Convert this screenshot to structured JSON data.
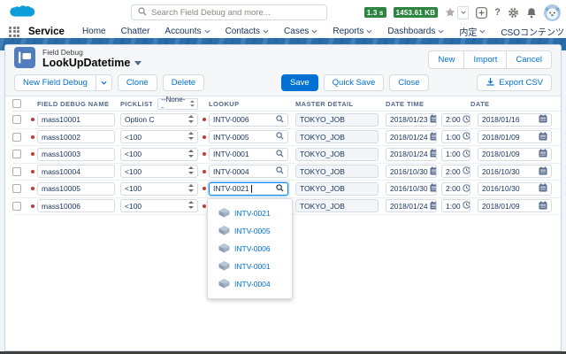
{
  "colors": {
    "accent": "#0070d2",
    "save_button_bg": "#0070d2",
    "badge_green": "#2e8540",
    "required_red": "#c23934",
    "brand_band_blue": "#2b6cab",
    "header_text": "#54698d"
  },
  "icons": {
    "salesforce-cloud": "cloud logo",
    "search": "magnifier",
    "favorites": "star with caret",
    "quick-create": "plus in rounded square",
    "help": "question mark",
    "setup": "gear",
    "notifications": "bell",
    "avatar": "user avatar circle",
    "app-launcher": "3x3 dot grid",
    "record-object": "blue square flag icon",
    "calendar": "calendar glyph",
    "clock": "clock glyph",
    "download": "download arrow",
    "lookup-record": "isometric box"
  },
  "utility_bar": {
    "search_placeholder": "Search Field Debug and more...",
    "perf_time_badge": "1.3 s",
    "perf_mem_badge": "1453.61 KB"
  },
  "nav": {
    "app_name": "Service",
    "items": [
      {
        "label": "Home",
        "caret": false
      },
      {
        "label": "Chatter",
        "caret": false
      },
      {
        "label": "Accounts",
        "caret": true
      },
      {
        "label": "Contacts",
        "caret": true
      },
      {
        "label": "Cases",
        "caret": true
      },
      {
        "label": "Reports",
        "caret": true
      },
      {
        "label": "Dashboards",
        "caret": true
      },
      {
        "label": "内定",
        "caret": true
      },
      {
        "label": "CSOコンテンツ",
        "caret": false
      }
    ]
  },
  "page_header": {
    "object_label": "Field Debug",
    "record_title": "LookUpDatetime",
    "top_buttons": [
      "New",
      "Import",
      "Cancel"
    ],
    "toolbar_left": [
      {
        "label": "New Field Debug",
        "split": true
      },
      {
        "label": "Clone"
      },
      {
        "label": "Delete"
      }
    ],
    "toolbar_center": [
      {
        "label": "Save",
        "primary": true
      },
      {
        "label": "Quick Save"
      },
      {
        "label": "Close"
      }
    ],
    "export_button": "Export CSV"
  },
  "table": {
    "columns": [
      "FIELD DEBUG NAME",
      "PICKLIST",
      "LOOKUP",
      "MASTER DETAIL",
      "DATE TIME",
      "DATE"
    ],
    "picklist_header_filter": "--None--",
    "rows": [
      {
        "name": "mass10001",
        "picklist": "Option C",
        "lookup": "INTV-0006",
        "lookup_editing": false,
        "master": "TOKYO_JOB",
        "datetime_date": "2018/01/23",
        "datetime_time": "2:00",
        "date": "2018/01/16"
      },
      {
        "name": "mass10002",
        "picklist": "<100",
        "lookup": "INTV-0005",
        "lookup_editing": false,
        "master": "TOKYO_JOB",
        "datetime_date": "2018/01/24",
        "datetime_time": "1:00",
        "date": "2018/01/09"
      },
      {
        "name": "mass10003",
        "picklist": "<100",
        "lookup": "INTV-0001",
        "lookup_editing": false,
        "master": "TOKYO_JOB",
        "datetime_date": "2018/01/24",
        "datetime_time": "1:00",
        "date": "2018/01/09"
      },
      {
        "name": "mass10004",
        "picklist": "<100",
        "lookup": "INTV-0004",
        "lookup_editing": false,
        "master": "TOKYO_JOB",
        "datetime_date": "2016/10/30",
        "datetime_time": "2:00",
        "date": "2016/10/30"
      },
      {
        "name": "mass10005",
        "picklist": "<100",
        "lookup": "INTV-0021",
        "lookup_editing": true,
        "master": "TOKYO_JOB",
        "datetime_date": "2016/10/30",
        "datetime_time": "2:00",
        "date": "2016/10/30"
      },
      {
        "name": "mass10006",
        "picklist": "<100",
        "lookup": "",
        "lookup_editing": false,
        "master": "TOKYO_JOB",
        "datetime_date": "2018/01/24",
        "datetime_time": "1:00",
        "date": "2018/01/09"
      }
    ]
  },
  "lookup_dropdown": {
    "items": [
      "INTV-0021",
      "INTV-0005",
      "INTV-0006",
      "INTV-0001",
      "INTV-0004"
    ]
  }
}
